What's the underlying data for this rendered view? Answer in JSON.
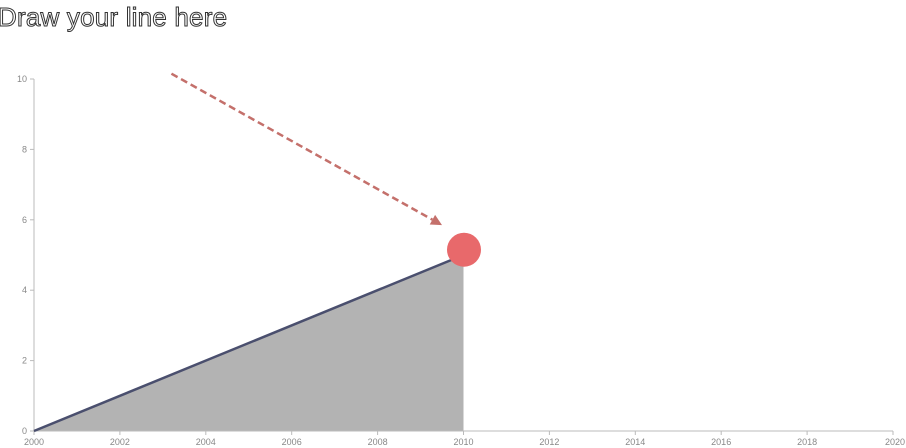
{
  "page": {
    "title": "Draw your line here"
  },
  "colors": {
    "line": "#4a4f6e",
    "area": "#b3b3b3",
    "handle": "#e8696b",
    "arrow": "#c4706b",
    "axis": "#bbbbbb",
    "tick_text": "#888888"
  },
  "chart_data": {
    "type": "area",
    "title": "Draw your line here",
    "xlabel": "",
    "ylabel": "",
    "x": [
      2000,
      2010
    ],
    "y": [
      0,
      5
    ],
    "xlim": [
      2000,
      2020
    ],
    "ylim": [
      0,
      10
    ],
    "x_ticks": [
      "2000",
      "2002",
      "2004",
      "2006",
      "2008",
      "2010",
      "2012",
      "2014",
      "2016",
      "2018",
      "2020"
    ],
    "y_ticks": [
      "0",
      "2",
      "4",
      "6",
      "8",
      "10"
    ],
    "grid": false,
    "legend": "none",
    "annotations": [
      {
        "type": "dashed-arrow",
        "from": [
          2003.2,
          10.15
        ],
        "to": [
          2009.5,
          5.85
        ]
      },
      {
        "type": "drag-handle",
        "at": [
          2010,
          5.15
        ]
      }
    ]
  }
}
